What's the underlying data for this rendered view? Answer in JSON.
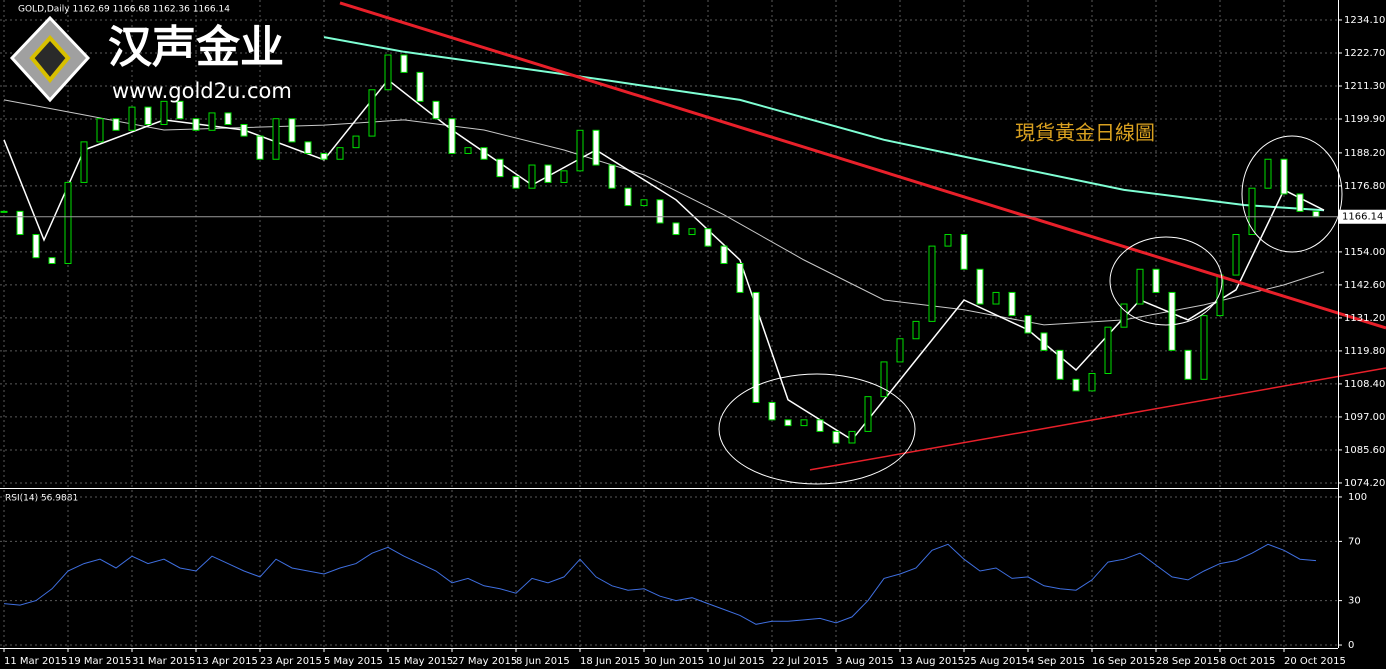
{
  "chart_data": {
    "type": "candlestick",
    "title": "現貨黃金日線圖",
    "symbol_label": "GOLD,Daily  1162.69 1166.68 1162.36 1166.14",
    "up_color": "#00e000",
    "down_color": "#ffffff",
    "x": [
      0,
      2,
      4,
      6,
      8,
      10,
      12,
      14,
      16,
      18,
      20,
      22,
      24,
      26,
      28,
      30,
      32,
      34,
      36,
      38,
      40,
      42,
      44,
      46,
      48,
      50,
      52,
      54,
      56,
      58,
      60,
      62,
      64,
      66,
      68,
      70,
      72,
      74,
      76,
      78,
      80,
      82,
      84,
      86,
      88,
      90,
      92,
      94,
      96,
      98,
      100,
      102,
      104,
      106,
      108,
      110,
      112,
      114,
      116,
      118,
      120,
      122,
      124,
      126,
      128,
      130,
      132,
      134,
      136,
      138,
      140,
      142,
      144,
      146,
      148,
      150,
      152,
      154,
      156,
      158,
      160,
      162,
      164
    ],
    "closes": [
      1168,
      1160,
      1152,
      1150,
      1178,
      1192,
      1200,
      1196,
      1204,
      1198,
      1206,
      1200,
      1196,
      1202,
      1198,
      1194,
      1186,
      1200,
      1192,
      1188,
      1186,
      1190,
      1194,
      1210,
      1222,
      1216,
      1206,
      1200,
      1188,
      1190,
      1186,
      1180,
      1176,
      1184,
      1178,
      1182,
      1196,
      1184,
      1176,
      1170,
      1172,
      1164,
      1160,
      1162,
      1156,
      1150,
      1140,
      1102,
      1096,
      1094,
      1096,
      1092,
      1088,
      1092,
      1104,
      1116,
      1124,
      1130,
      1156,
      1160,
      1148,
      1136,
      1140,
      1132,
      1126,
      1120,
      1110,
      1106,
      1112,
      1128,
      1136,
      1148,
      1140,
      1120,
      1110,
      1132,
      1146,
      1160,
      1176,
      1186,
      1174,
      1168,
      1166.14
    ],
    "xlim": [
      -0.5,
      166.75
    ],
    "ylim": [
      1072.8,
      1241.0
    ],
    "yticks": [
      {
        "value": 1234.1,
        "label": "1234.10"
      },
      {
        "value": 1222.7,
        "label": "1222.70"
      },
      {
        "value": 1211.3,
        "label": "1211.30"
      },
      {
        "value": 1199.9,
        "label": "1199.90"
      },
      {
        "value": 1188.2,
        "label": "1188.20"
      },
      {
        "value": 1176.8,
        "label": "1176.80"
      },
      {
        "value": 1154,
        "label": "1154.00"
      },
      {
        "value": 1142.6,
        "label": "1142.60"
      },
      {
        "value": 1131.2,
        "label": "1131.20"
      },
      {
        "value": 1119.8,
        "label": "1119.80"
      },
      {
        "value": 1108.4,
        "label": "1108.40"
      },
      {
        "value": 1097,
        "label": "1097.00"
      },
      {
        "value": 1085.6,
        "label": "1085.60"
      },
      {
        "value": 1074.2,
        "label": "1074.20"
      }
    ],
    "xticks": [
      {
        "value": 0,
        "label": "11 Mar 2015"
      },
      {
        "value": 8,
        "label": "19 Mar 2015"
      },
      {
        "value": 16,
        "label": "31 Mar 2015"
      },
      {
        "value": 24,
        "label": "13 Apr 2015"
      },
      {
        "value": 32,
        "label": "23 Apr 2015"
      },
      {
        "value": 40,
        "label": "5 May 2015"
      },
      {
        "value": 48,
        "label": "15 May 2015"
      },
      {
        "value": 56,
        "label": "27 May 2015"
      },
      {
        "value": 64,
        "label": "8 Jun 2015"
      },
      {
        "value": 72,
        "label": "18 Jun 2015"
      },
      {
        "value": 80,
        "label": "30 Jun 2015"
      },
      {
        "value": 88,
        "label": "10 Jul 2015"
      },
      {
        "value": 96,
        "label": "22 Jul 2015"
      },
      {
        "value": 104,
        "label": "3 Aug 2015"
      },
      {
        "value": 112,
        "label": "13 Aug 2015"
      },
      {
        "value": 120,
        "label": "25 Aug 2015"
      },
      {
        "value": 128,
        "label": "4 Sep 2015"
      },
      {
        "value": 136,
        "label": "16 Sep 2015"
      },
      {
        "value": 144,
        "label": "28 Sep 2015"
      },
      {
        "value": 152,
        "label": "8 Oct 2015"
      },
      {
        "value": 160,
        "label": "20 Oct 2015"
      }
    ],
    "grid": true,
    "current_price": {
      "value": 1166.14,
      "label": "1166.14"
    },
    "moving_averages": [
      {
        "color": "#7fffd4",
        "width": 2,
        "x": [
          40,
          50,
          75,
          92,
          110,
          125,
          140,
          155,
          165
        ],
        "values": [
          1228.2,
          1223.1,
          1213.4,
          1206.5,
          1192.7,
          1184.0,
          1175.4,
          1170.2,
          1168.4
        ]
      },
      {
        "color": "#c8c8c8",
        "width": 1,
        "x": [
          0,
          10,
          20,
          40,
          50,
          60,
          70,
          80,
          90,
          100,
          110,
          120,
          130,
          140,
          150,
          160,
          165
        ],
        "values": [
          1206.5,
          1201.3,
          1196.1,
          1197.8,
          1199.6,
          1196.1,
          1189.2,
          1180.6,
          1166.8,
          1151.2,
          1137.4,
          1134.0,
          1128.8,
          1130.5,
          1135.7,
          1142.6,
          1147.1
        ]
      },
      {
        "color": "#ffffff",
        "width": 1.5,
        "x": [
          0,
          5,
          10,
          20,
          30,
          40,
          48,
          56,
          66,
          74,
          84,
          92,
          98,
          106,
          114,
          120,
          128,
          134,
          142,
          148,
          154,
          160,
          165
        ],
        "values": [
          1192.7,
          1158.1,
          1189.2,
          1199.6,
          1196.1,
          1185.8,
          1213.4,
          1196.1,
          1177.1,
          1189.2,
          1172.0,
          1151.2,
          1102.9,
          1089.1,
          1116.7,
          1137.4,
          1127.1,
          1113.2,
          1137.4,
          1130.5,
          1140.9,
          1175.4,
          1168.4
        ]
      }
    ],
    "trendlines": [
      {
        "color": "#e8202a",
        "width": 3,
        "x": [
          42,
          172.75
        ],
        "values": [
          1240.0,
          1127.7
        ]
      },
      {
        "color": "#e8202a",
        "width": 1.5,
        "x": [
          100.75,
          172.75
        ],
        "values": [
          1078.7,
          1113.9
        ]
      }
    ],
    "rsi": {
      "label": "RSI(14) 56.9881",
      "color": "#3f6fe0",
      "ylim": [
        -2,
        104.7
      ],
      "yticks": [
        0,
        30,
        70,
        100
      ],
      "values": [
        28,
        27,
        30,
        38,
        50,
        55,
        58,
        52,
        60,
        55,
        58,
        52,
        50,
        60,
        55,
        50,
        46,
        58,
        52,
        50,
        48,
        52,
        55,
        62,
        66,
        60,
        55,
        50,
        42,
        45,
        40,
        38,
        35,
        45,
        42,
        46,
        58,
        46,
        40,
        37,
        38,
        33,
        30,
        32,
        28,
        24,
        20,
        14,
        16,
        16,
        17,
        18,
        15,
        19,
        30,
        45,
        48,
        52,
        64,
        68,
        58,
        50,
        52,
        45,
        46,
        40,
        38,
        37,
        44,
        56,
        58,
        62,
        54,
        46,
        44,
        50,
        55,
        57,
        62,
        68,
        64,
        58,
        57
      ]
    }
  },
  "logo": {
    "name": "汉声金业",
    "url": "www.gold2u.com"
  }
}
